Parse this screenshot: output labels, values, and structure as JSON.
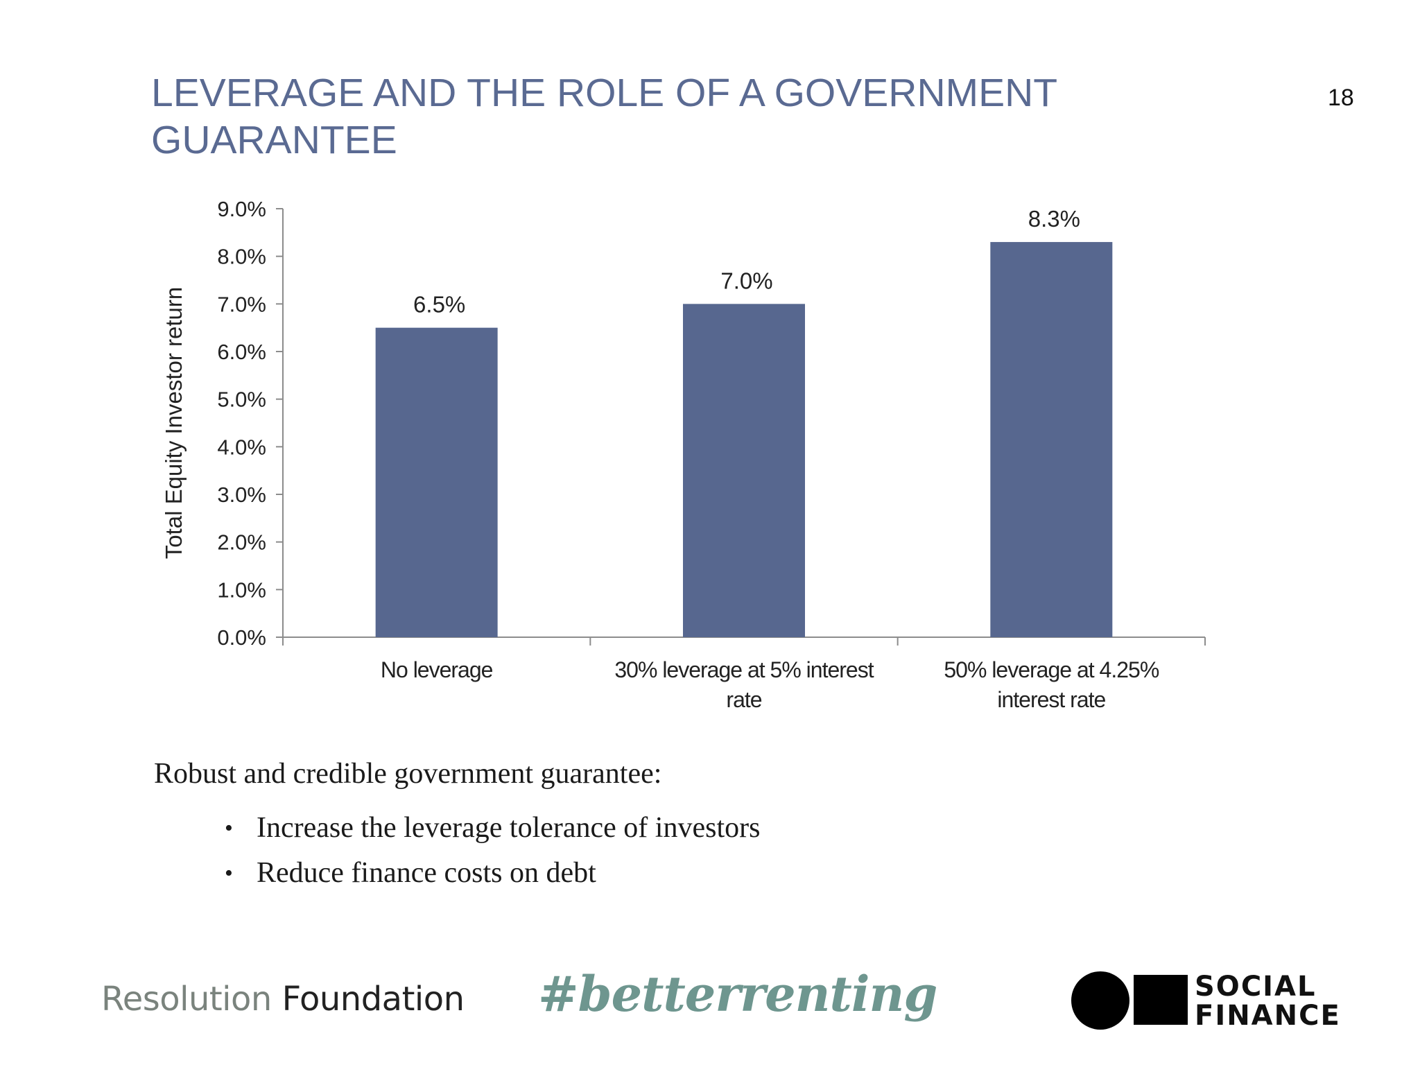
{
  "slide": {
    "title": "LEVERAGE AND THE ROLE OF A GOVERNMENT GUARANTEE",
    "page_number": "18"
  },
  "chart_data": {
    "type": "bar",
    "categories": [
      [
        "No leverage"
      ],
      [
        "30% leverage at 5% interest",
        "rate"
      ],
      [
        "50% leverage at 4.25%",
        "interest rate"
      ]
    ],
    "values": [
      6.5,
      7.0,
      8.3
    ],
    "data_labels": [
      "6.5%",
      "7.0%",
      "8.3%"
    ],
    "ylabel": "Total Equity Investor return",
    "ylim": [
      0,
      9
    ],
    "yticks": [
      "0.0%",
      "1.0%",
      "2.0%",
      "3.0%",
      "4.0%",
      "5.0%",
      "6.0%",
      "7.0%",
      "8.0%",
      "9.0%"
    ],
    "bar_color": "#57678f",
    "grid": false
  },
  "body": {
    "intro": "Robust and credible government guarantee:",
    "bullets": [
      "Increase the leverage tolerance of investors",
      "Reduce finance costs on debt"
    ],
    "bullet_glyph": "•"
  },
  "footer": {
    "left_logo_part1": "Resolution",
    "left_logo_part2": "Foundation",
    "hashtag": "#betterrenting",
    "right_logo_line1": "SOCIAL",
    "right_logo_line2": "FINANCE"
  }
}
